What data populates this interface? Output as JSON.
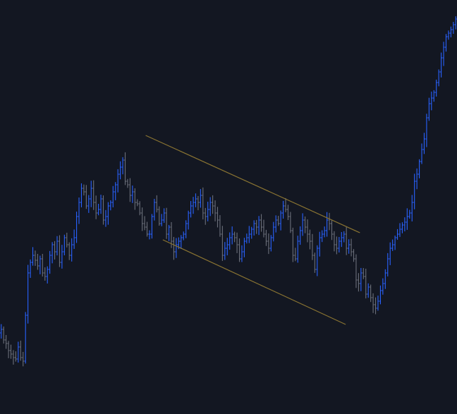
{
  "chart_data": {
    "type": "bar",
    "style": "ohlc-price-bars",
    "x_index_range": [
      0,
      160
    ],
    "ylim": [
      0,
      587
    ],
    "grid": false,
    "legend": "none",
    "colors": {
      "background": "#131722",
      "up": "#2962ff",
      "down": "#6b6f7a",
      "channel": "#8a7432"
    },
    "series": [
      {
        "values": [
          120,
          105,
          100,
          90,
          85,
          80,
          78,
          95,
          80,
          75,
          140,
          200,
          215,
          225,
          218,
          210,
          220,
          200,
          195,
          205,
          225,
          240,
          230,
          245,
          215,
          230,
          250,
          240,
          225,
          240,
          250,
          280,
          300,
          320,
          315,
          295,
          305,
          320,
          300,
          285,
          290,
          305,
          275,
          280,
          295,
          300,
          315,
          325,
          340,
          350,
          360,
          330,
          325,
          310,
          315,
          300,
          298,
          285,
          270,
          265,
          255,
          255,
          280,
          300,
          290,
          270,
          275,
          285,
          255,
          265,
          245,
          230,
          240,
          245,
          250,
          255,
          270,
          285,
          295,
          300,
          305,
          300,
          310,
          285,
          280,
          290,
          300,
          295,
          285,
          275,
          255,
          225,
          235,
          240,
          250,
          255,
          250,
          240,
          220,
          230,
          245,
          250,
          255,
          262,
          270,
          265,
          275,
          265,
          255,
          245,
          235,
          250,
          265,
          275,
          270,
          285,
          295,
          290,
          280,
          260,
          225,
          220,
          245,
          260,
          275,
          265,
          255,
          245,
          225,
          205,
          235,
          250,
          255,
          260,
          275,
          270,
          255,
          240,
          235,
          245,
          250,
          255,
          235,
          240,
          230,
          220,
          190,
          185,
          200,
          195,
          170,
          180,
          165,
          155,
          150,
          160,
          175,
          185,
          200,
          220,
          235,
          240,
          250,
          255,
          262,
          268,
          272,
          280,
          285,
          300,
          330,
          340,
          358,
          375,
          390,
          420,
          440,
          448,
          456,
          470,
          485,
          505,
          520,
          535,
          540,
          545,
          552,
          560
        ]
      }
    ],
    "annotations": [
      {
        "type": "trendline",
        "label": "",
        "points": [
          [
            51,
            395
          ],
          [
            126,
            257
          ]
        ]
      },
      {
        "type": "trendline",
        "label": "",
        "points": [
          [
            57,
            247
          ],
          [
            121,
            127
          ]
        ]
      }
    ]
  }
}
